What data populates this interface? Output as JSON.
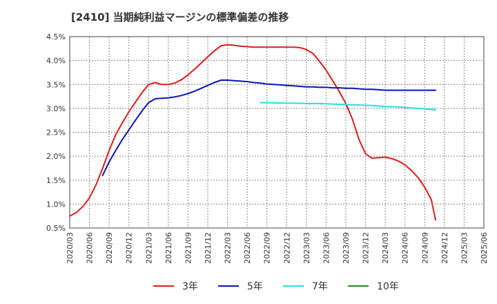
{
  "chart_data": {
    "type": "line",
    "title": "[2410]  当期純利益マージンの標準偏差の推移",
    "xlabel": "",
    "ylabel": "",
    "ylim": [
      0.5,
      4.5
    ],
    "yticks": [
      "0.5%",
      "1.0%",
      "1.5%",
      "2.0%",
      "2.5%",
      "3.0%",
      "3.5%",
      "4.0%",
      "4.5%"
    ],
    "ytick_values": [
      0.5,
      1.0,
      1.5,
      2.0,
      2.5,
      3.0,
      3.5,
      4.0,
      4.5
    ],
    "x_categories": [
      "2020/03",
      "2020/06",
      "2020/09",
      "2020/12",
      "2021/03",
      "2021/06",
      "2021/09",
      "2021/12",
      "2022/03",
      "2022/06",
      "2022/09",
      "2022/12",
      "2023/03",
      "2023/06",
      "2023/09",
      "2023/12",
      "2024/03",
      "2024/06",
      "2024/09",
      "2024/12",
      "2025/03",
      "2025/06"
    ],
    "grid": true,
    "legend_position": "bottom",
    "series": [
      {
        "name": "3年",
        "color": "#e31a1c",
        "points": [
          [
            0,
            0.75
          ],
          [
            0.33,
            0.82
          ],
          [
            0.67,
            0.95
          ],
          [
            1.0,
            1.13
          ],
          [
            1.33,
            1.4
          ],
          [
            1.67,
            1.75
          ],
          [
            2.0,
            2.12
          ],
          [
            2.33,
            2.45
          ],
          [
            2.67,
            2.7
          ],
          [
            3.0,
            2.93
          ],
          [
            3.33,
            3.13
          ],
          [
            3.67,
            3.33
          ],
          [
            4.0,
            3.5
          ],
          [
            4.33,
            3.54
          ],
          [
            4.67,
            3.5
          ],
          [
            5.0,
            3.5
          ],
          [
            5.33,
            3.53
          ],
          [
            5.67,
            3.6
          ],
          [
            6.0,
            3.7
          ],
          [
            6.33,
            3.82
          ],
          [
            6.67,
            3.95
          ],
          [
            7.0,
            4.08
          ],
          [
            7.33,
            4.2
          ],
          [
            7.67,
            4.31
          ],
          [
            8.0,
            4.33
          ],
          [
            8.33,
            4.32
          ],
          [
            8.67,
            4.3
          ],
          [
            9.0,
            4.29
          ],
          [
            9.33,
            4.28
          ],
          [
            9.67,
            4.28
          ],
          [
            10.0,
            4.28
          ],
          [
            10.33,
            4.28
          ],
          [
            10.67,
            4.28
          ],
          [
            11.0,
            4.28
          ],
          [
            11.33,
            4.28
          ],
          [
            11.67,
            4.27
          ],
          [
            12.0,
            4.23
          ],
          [
            12.33,
            4.15
          ],
          [
            12.67,
            3.98
          ],
          [
            13.0,
            3.8
          ],
          [
            13.33,
            3.58
          ],
          [
            13.67,
            3.35
          ],
          [
            14.0,
            3.1
          ],
          [
            14.33,
            2.78
          ],
          [
            14.67,
            2.35
          ],
          [
            15.0,
            2.05
          ],
          [
            15.33,
            1.96
          ],
          [
            15.67,
            1.97
          ],
          [
            16.0,
            1.98
          ],
          [
            16.33,
            1.95
          ],
          [
            16.67,
            1.9
          ],
          [
            17.0,
            1.82
          ],
          [
            17.33,
            1.7
          ],
          [
            17.67,
            1.55
          ],
          [
            18.0,
            1.35
          ],
          [
            18.33,
            1.1
          ],
          [
            18.55,
            0.67
          ]
        ]
      },
      {
        "name": "5年",
        "color": "#0a14b8",
        "points": [
          [
            1.67,
            1.6
          ],
          [
            2.0,
            1.88
          ],
          [
            2.33,
            2.12
          ],
          [
            2.67,
            2.35
          ],
          [
            3.0,
            2.55
          ],
          [
            3.33,
            2.75
          ],
          [
            3.67,
            2.95
          ],
          [
            4.0,
            3.12
          ],
          [
            4.33,
            3.2
          ],
          [
            4.67,
            3.21
          ],
          [
            5.0,
            3.22
          ],
          [
            5.33,
            3.24
          ],
          [
            5.67,
            3.27
          ],
          [
            6.0,
            3.31
          ],
          [
            6.33,
            3.36
          ],
          [
            6.67,
            3.42
          ],
          [
            7.0,
            3.48
          ],
          [
            7.33,
            3.54
          ],
          [
            7.67,
            3.59
          ],
          [
            8.0,
            3.59
          ],
          [
            8.33,
            3.58
          ],
          [
            8.67,
            3.57
          ],
          [
            9.0,
            3.56
          ],
          [
            9.33,
            3.54
          ],
          [
            9.67,
            3.53
          ],
          [
            10.0,
            3.51
          ],
          [
            10.33,
            3.5
          ],
          [
            10.67,
            3.49
          ],
          [
            11.0,
            3.48
          ],
          [
            11.33,
            3.47
          ],
          [
            11.67,
            3.46
          ],
          [
            12.0,
            3.45
          ],
          [
            12.33,
            3.45
          ],
          [
            12.67,
            3.44
          ],
          [
            13.0,
            3.44
          ],
          [
            13.33,
            3.43
          ],
          [
            13.67,
            3.43
          ],
          [
            14.0,
            3.42
          ],
          [
            14.33,
            3.42
          ],
          [
            14.67,
            3.41
          ],
          [
            15.0,
            3.4
          ],
          [
            15.33,
            3.4
          ],
          [
            15.67,
            3.39
          ],
          [
            16.0,
            3.38
          ],
          [
            16.33,
            3.38
          ],
          [
            16.67,
            3.38
          ],
          [
            17.0,
            3.38
          ],
          [
            17.33,
            3.38
          ],
          [
            17.67,
            3.38
          ],
          [
            18.0,
            3.38
          ],
          [
            18.33,
            3.38
          ],
          [
            18.55,
            3.38
          ]
        ]
      },
      {
        "name": "7年",
        "color": "#22e0e0",
        "points": [
          [
            9.67,
            3.12
          ],
          [
            10.0,
            3.12
          ],
          [
            10.67,
            3.11
          ],
          [
            11.33,
            3.11
          ],
          [
            12.0,
            3.1
          ],
          [
            12.67,
            3.1
          ],
          [
            13.33,
            3.09
          ],
          [
            14.0,
            3.08
          ],
          [
            14.67,
            3.07
          ],
          [
            15.33,
            3.06
          ],
          [
            16.0,
            3.04
          ],
          [
            16.67,
            3.03
          ],
          [
            17.33,
            3.01
          ],
          [
            18.0,
            2.99
          ],
          [
            18.55,
            2.97
          ]
        ]
      },
      {
        "name": "10年",
        "color": "#228b22",
        "points": []
      }
    ]
  }
}
